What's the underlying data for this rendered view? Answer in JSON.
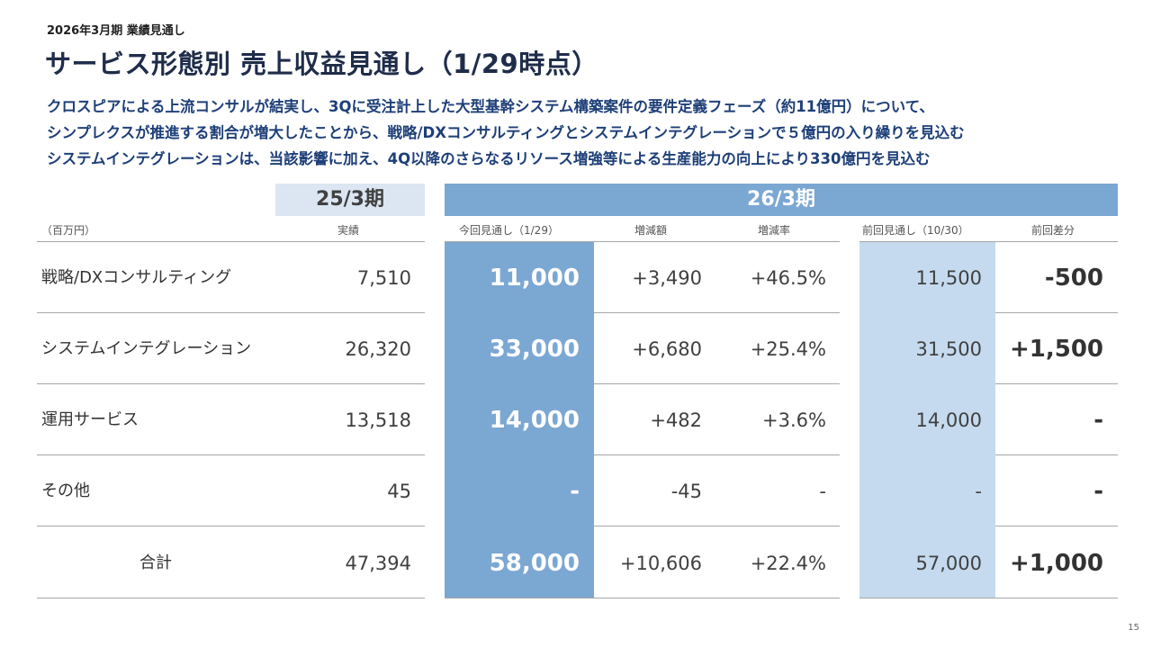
{
  "header": {
    "subtitle": "2026年3月期 業績見通し",
    "title": "サービス形態別 売上収益見通し（1/29時点）"
  },
  "description": [
    "クロスピアによる上流コンサルが結実し、3Qに受注計上した大型基幹システム構築案件の要件定義フェーズ（約11億円）について、",
    "シンプレクスが推進する割合が増大したことから、戦略/DXコンサルティングとシステムインテグレーションで５億円の入り繰りを見込む",
    "システムインテグレーションは、当該影響に加え、4Q以降のさらなるリソース増強等による生産能力の向上により330億円を見込む"
  ],
  "table": {
    "period_prev": "25/3期",
    "period_current": "26/3期",
    "unit": "（百万円）",
    "columns": {
      "actual": "実績",
      "current_forecast": "今回見通し（1/29）",
      "increase": "増減額",
      "rate": "増減率",
      "prev_forecast": "前回見通し（10/30）",
      "diff": "前回差分"
    },
    "rows": [
      {
        "label": "戦略/DXコンサルティング",
        "actual": "7,510",
        "current": "11,000",
        "increase": "+3,490",
        "rate": "+46.5%",
        "prev": "11,500",
        "diff": "-500"
      },
      {
        "label": "システムインテグレーション",
        "actual": "26,320",
        "current": "33,000",
        "increase": "+6,680",
        "rate": "+25.4%",
        "prev": "31,500",
        "diff": "+1,500"
      },
      {
        "label": "運用サービス",
        "actual": "13,518",
        "current": "14,000",
        "increase": "+482",
        "rate": "+3.6%",
        "prev": "14,000",
        "diff": "-"
      },
      {
        "label": "その他",
        "actual": "45",
        "current": "-",
        "increase": "-45",
        "rate": "-",
        "prev": "-",
        "diff": "-"
      },
      {
        "label": "合計",
        "actual": "47,394",
        "current": "58,000",
        "increase": "+10,606",
        "rate": "+22.4%",
        "prev": "57,000",
        "diff": "+1,000"
      }
    ]
  },
  "page_number": "15",
  "colors": {
    "title": "#1f2d4a",
    "description": "#1e3f78",
    "band_25": "#dbe6f2",
    "band_26": "#7ba7d3",
    "current_column": "#7ba7d3",
    "prev_column": "#c5daef"
  }
}
